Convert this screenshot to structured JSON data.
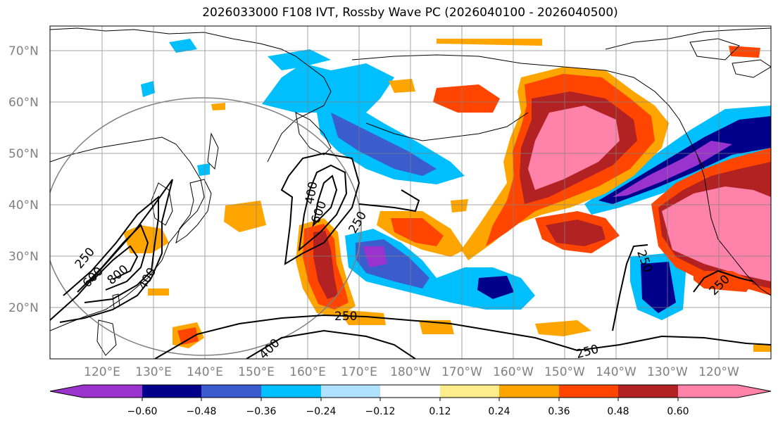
{
  "title": "2026033000 F108 IVT, Rossby Wave PC (2026040100 - 2026040500)",
  "lat_labels": [
    "70°N",
    "60°N",
    "50°N",
    "40°N",
    "30°N",
    "20°N"
  ],
  "lon_labels": [
    "120°E",
    "130°E",
    "140°E",
    "150°E",
    "160°E",
    "170°E",
    "180°W",
    "170°W",
    "160°W",
    "150°W",
    "140°W",
    "130°W",
    "120°W"
  ],
  "colorbar": {
    "ticks": [
      "−0.60",
      "−0.48",
      "−0.36",
      "−0.24",
      "−0.12",
      "0.12",
      "0.24",
      "0.36",
      "0.48",
      "0.60"
    ],
    "colors": [
      "#9a32cd",
      "#00008b",
      "#3a5ccc",
      "#00bfff",
      "#b0e2ff",
      "#ffffff",
      "#ffec8b",
      "#ffa500",
      "#ff4500",
      "#b22222",
      "#ff82ab"
    ]
  },
  "contour_labels": [
    "250",
    "600",
    "800",
    "400",
    "400",
    "600",
    "250",
    "250",
    "400",
    "250",
    "250",
    "250"
  ],
  "colors": {
    "coast": "#000000",
    "grid": "#808080",
    "contour": "#000000",
    "circle": "#808080"
  }
}
